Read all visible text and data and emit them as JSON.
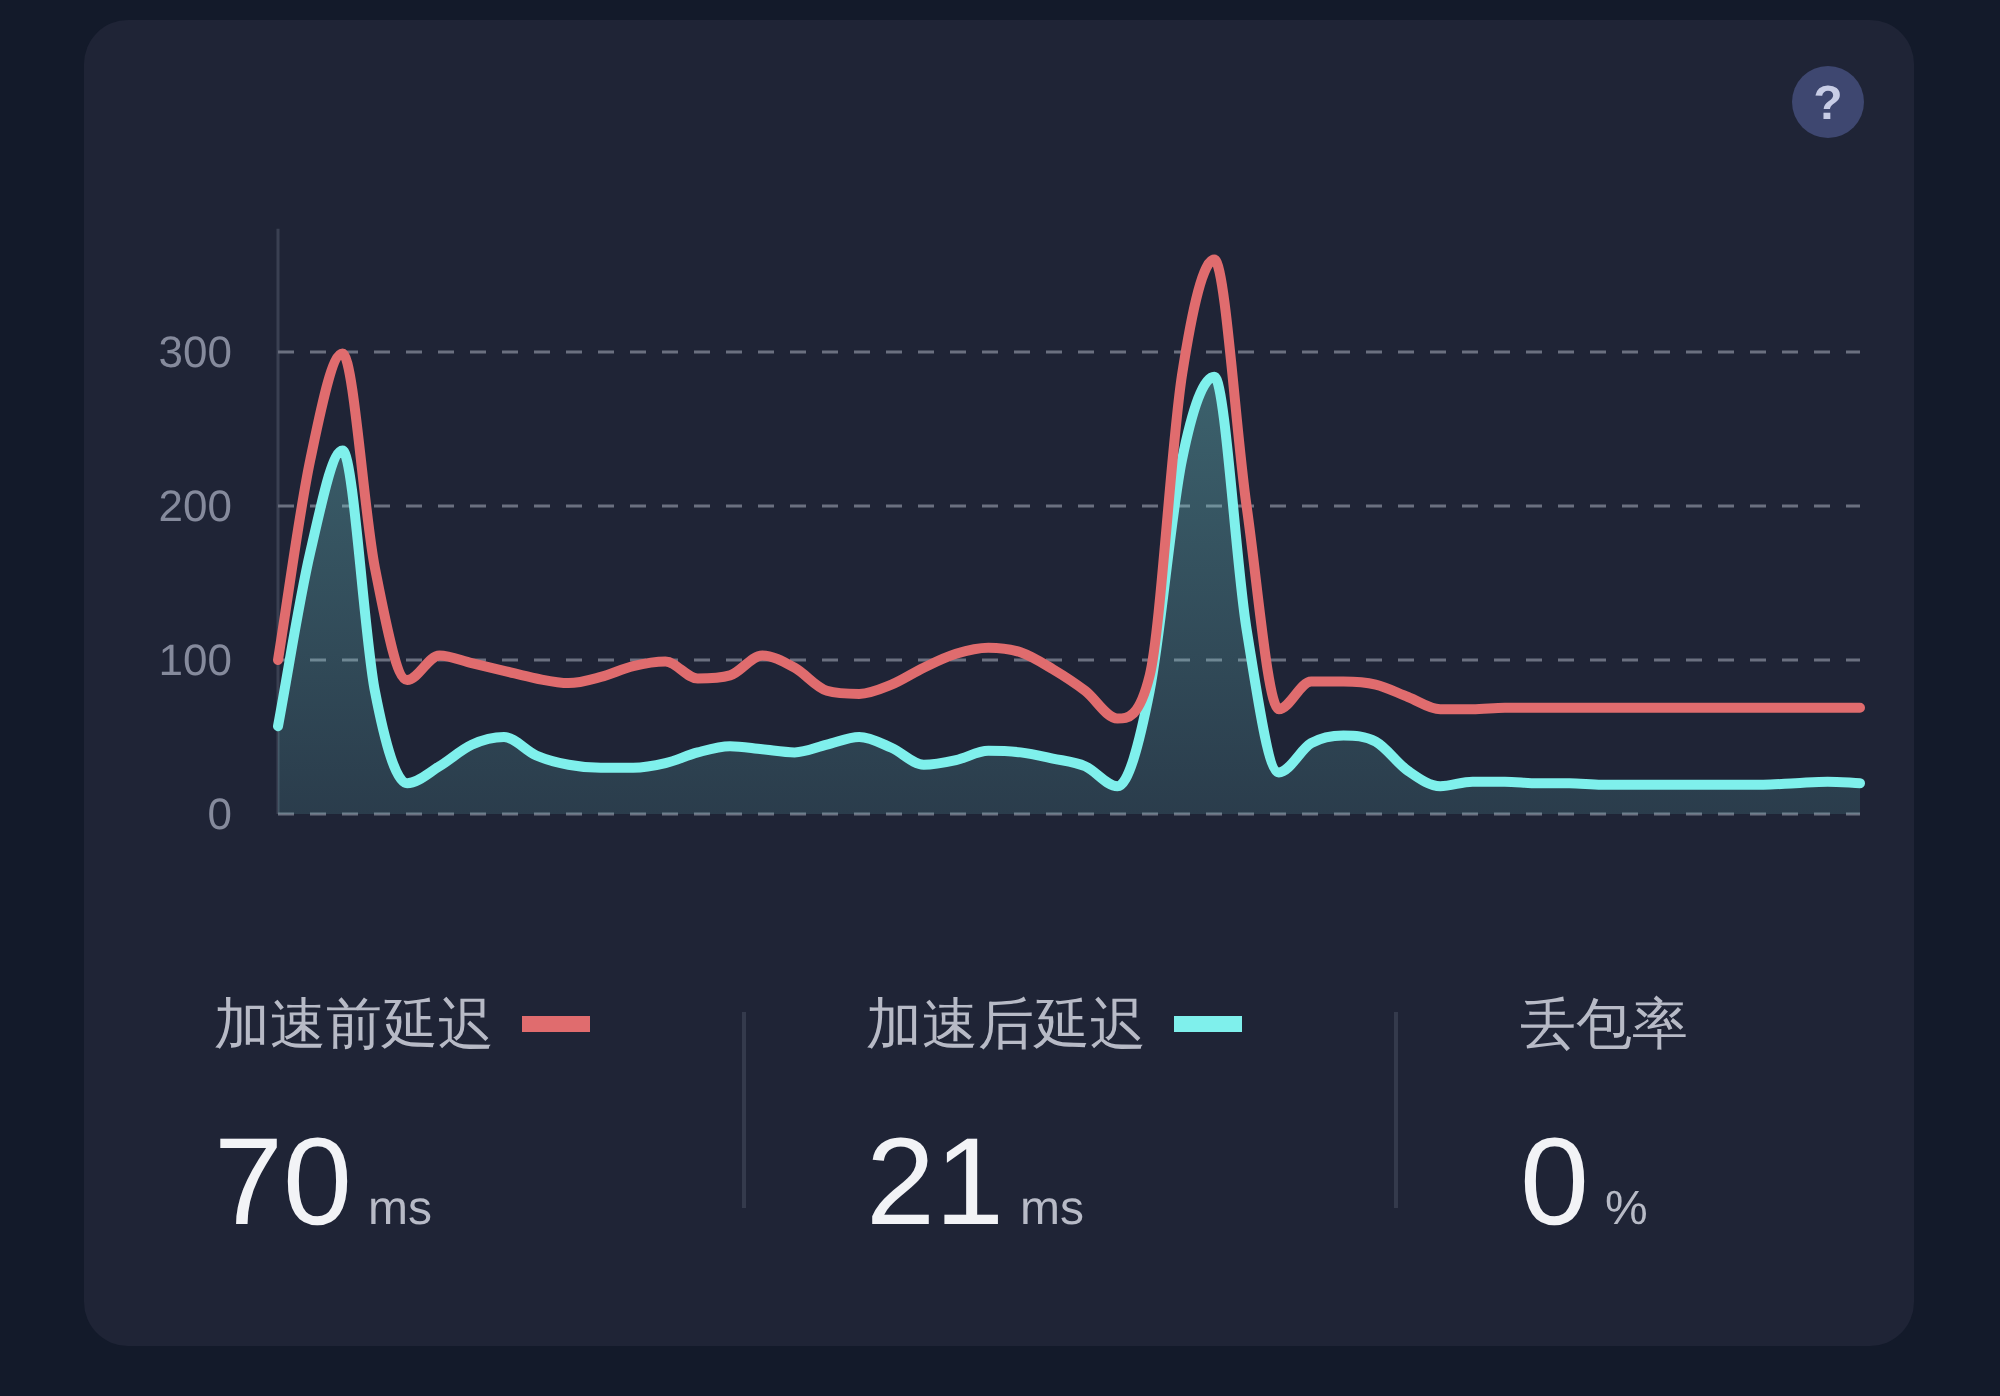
{
  "chart_data": {
    "type": "line",
    "categories": [
      null,
      null,
      null,
      null,
      null,
      null,
      null,
      null,
      null,
      null,
      null,
      null,
      null,
      null,
      null,
      null,
      null,
      null,
      null,
      null,
      null,
      null,
      null,
      null,
      null,
      null,
      null,
      null,
      null,
      null,
      null,
      null,
      null,
      null,
      null,
      null,
      null,
      null,
      null,
      null,
      null,
      null,
      null,
      null,
      null,
      null,
      null,
      null,
      null,
      null
    ],
    "series": [
      {
        "name": "加速前延迟",
        "color": "#e06c6e",
        "values": [
          100,
          230,
          299,
          160,
          87,
          103,
          98,
          93,
          88,
          85,
          89,
          96,
          99,
          88,
          90,
          103,
          95,
          80,
          78,
          84,
          95,
          104,
          108,
          105,
          94,
          80,
          62,
          90,
          285,
          360,
          200,
          68,
          86,
          86,
          84,
          76,
          68,
          68,
          69,
          69,
          69,
          69,
          69,
          69,
          69,
          69,
          69,
          69,
          69,
          69
        ]
      },
      {
        "name": "加速后延迟",
        "type": "area",
        "color": "#7ff0ec",
        "values": [
          57,
          170,
          236,
          80,
          20,
          31,
          45,
          50,
          38,
          32,
          30,
          30,
          33,
          40,
          44,
          42,
          40,
          45,
          50,
          43,
          32,
          35,
          41,
          40,
          36,
          31,
          18,
          80,
          230,
          284,
          120,
          27,
          46,
          51,
          47,
          28,
          18,
          21,
          21,
          20,
          20,
          19,
          19,
          19,
          19,
          19,
          19,
          20,
          21,
          20
        ]
      }
    ],
    "ylim": [
      0,
      380
    ],
    "yticks": [
      0,
      100,
      200,
      300
    ],
    "grid": "y",
    "legend": "bottom",
    "annotations": [
      "丢包率",
      "70",
      "ms",
      "21",
      "ms",
      "0",
      "%",
      "?"
    ]
  }
}
